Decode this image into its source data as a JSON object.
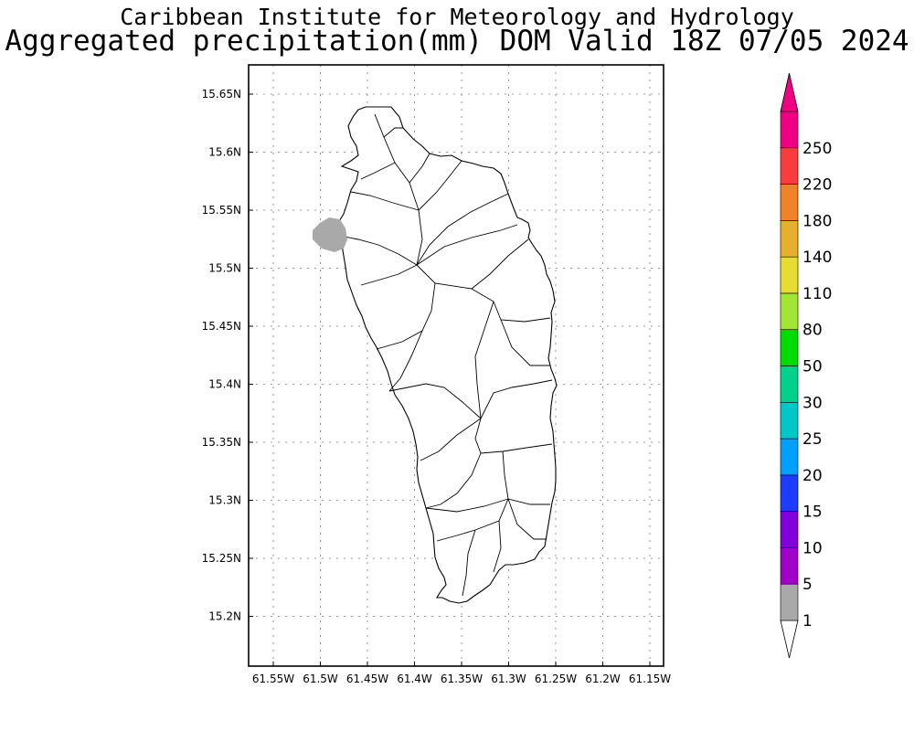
{
  "title": {
    "line1": "Caribbean Institute for Meteorology and Hydrology",
    "line2": "Aggregated precipitation(mm) DOM Valid 18Z 07/05 2024"
  },
  "map": {
    "lon_ticks": [
      "61.55W",
      "61.5W",
      "61.45W",
      "61.4W",
      "61.35W",
      "61.3W",
      "61.25W",
      "61.2W",
      "61.15W"
    ],
    "lat_ticks": [
      "15.65N",
      "15.6N",
      "15.55N",
      "15.5N",
      "15.45N",
      "15.4N",
      "15.35N",
      "15.3N",
      "15.25N",
      "15.2N"
    ],
    "grid": true,
    "precip_area": {
      "value_range": "1-5",
      "color": "#a9a9a9",
      "location": "west coast near 15.53N 61.49W"
    }
  },
  "colorbar": {
    "levels": [
      "1",
      "5",
      "10",
      "15",
      "20",
      "25",
      "30",
      "50",
      "80",
      "110",
      "140",
      "180",
      "220",
      "250"
    ],
    "colors": [
      "#a9a9a9",
      "#a000c8",
      "#8200dc",
      "#1e3cff",
      "#00a0ff",
      "#00c8c8",
      "#00d28c",
      "#00dc00",
      "#a0e632",
      "#e6dc32",
      "#e6af2d",
      "#f08228",
      "#fa3c3c",
      "#f00082"
    ],
    "lower_arrow_color": "#ffffff",
    "upper_arrow_color": "#f00082"
  }
}
